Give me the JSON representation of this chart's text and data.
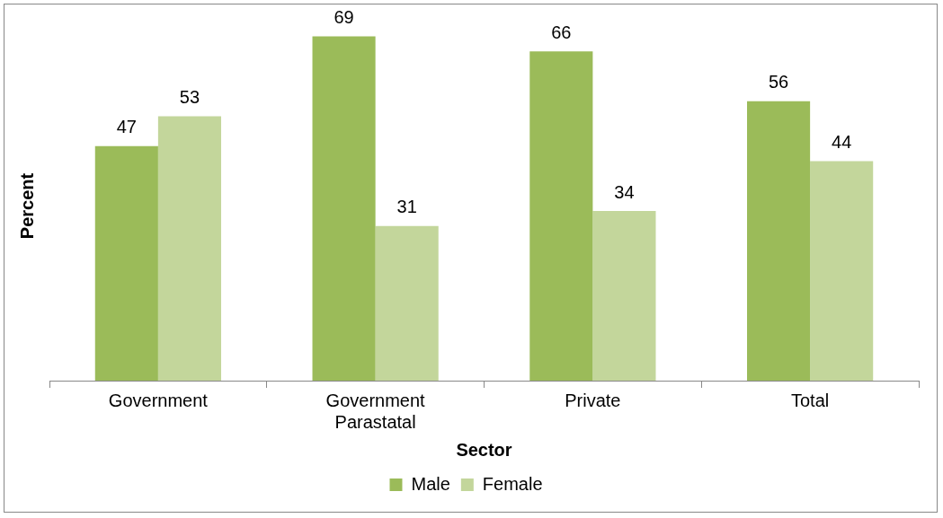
{
  "chart_data": {
    "type": "bar",
    "xlabel": "Sector",
    "ylabel": "Percent",
    "categories": [
      "Government",
      "Government Parastatal",
      "Private",
      "Total"
    ],
    "series": [
      {
        "name": "Male",
        "color": "#9bbb59",
        "values": [
          47,
          69,
          66,
          56
        ]
      },
      {
        "name": "Female",
        "color": "#c3d69b",
        "values": [
          53,
          31,
          34,
          44
        ]
      }
    ],
    "data_labels": true,
    "legend": "bottom",
    "grid": false,
    "tick_labels": "x"
  }
}
